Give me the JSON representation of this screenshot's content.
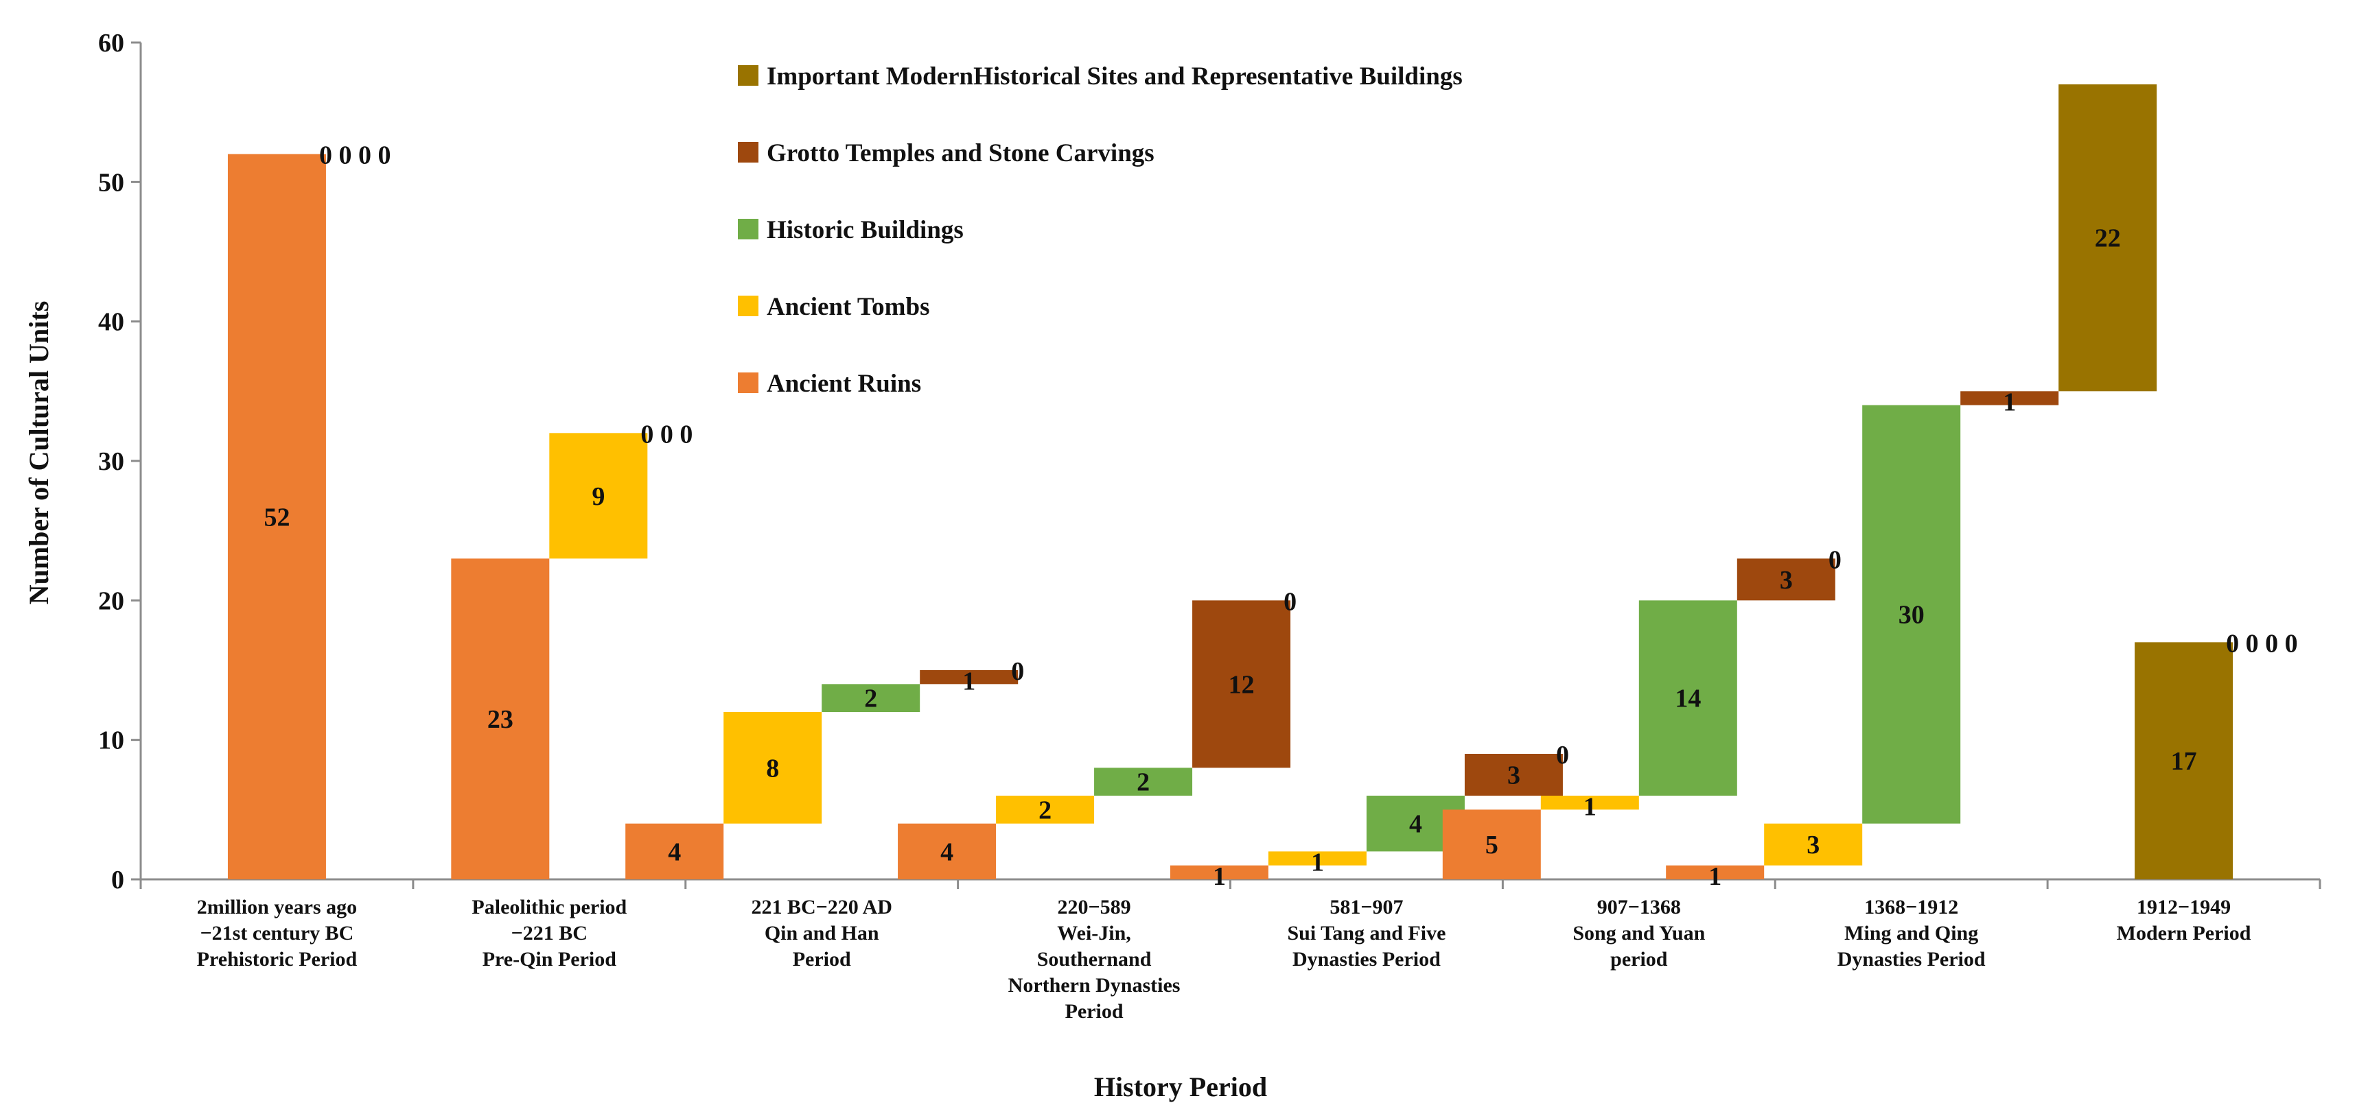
{
  "chart_data": {
    "type": "bar",
    "stacked": "waterfall",
    "title": "",
    "xlabel": "History Period",
    "ylabel": "Number of Cultural  Units",
    "ylim": [
      0,
      60
    ],
    "yticks": [
      "0",
      "10",
      "20",
      "30",
      "40",
      "50",
      "60"
    ],
    "legend_position": "top-center",
    "categories": [
      {
        "lines": [
          "2million years ago",
          "−21st century BC",
          "Prehistoric Period"
        ]
      },
      {
        "lines": [
          "Paleolithic period",
          "−221 BC",
          "Pre-Qin Period"
        ]
      },
      {
        "lines": [
          "221 BC−220 AD",
          "Qin and Han",
          "Period"
        ]
      },
      {
        "lines": [
          "220−589",
          "Wei-Jin,",
          "Southernand",
          "Northern Dynasties",
          "Period"
        ]
      },
      {
        "lines": [
          "581−907",
          "Sui Tang and Five",
          "Dynasties Period"
        ]
      },
      {
        "lines": [
          "907−1368",
          "Song and Yuan",
          "period"
        ]
      },
      {
        "lines": [
          "1368−1912",
          "Ming and Qing",
          "Dynasties Period"
        ]
      },
      {
        "lines": [
          "1912−1949",
          "Modern Period"
        ]
      }
    ],
    "series": [
      {
        "name": "Ancient Ruins",
        "color": "#ED7D31",
        "values": [
          52,
          23,
          4,
          4,
          1,
          5,
          1,
          0
        ]
      },
      {
        "name": "Ancient Tombs",
        "color": "#FFC000",
        "values": [
          0,
          9,
          8,
          2,
          1,
          1,
          3,
          0
        ]
      },
      {
        "name": "Historic Buildings",
        "color": "#70AD47",
        "values": [
          0,
          0,
          2,
          2,
          4,
          14,
          30,
          0
        ]
      },
      {
        "name": "Grotto Temples and Stone Carvings",
        "color": "#9E480E",
        "values": [
          0,
          0,
          1,
          12,
          3,
          3,
          1,
          0
        ]
      },
      {
        "name": "Important ModernHistorical Sites and Representative Buildings",
        "color": "#997300",
        "values": [
          0,
          0,
          0,
          0,
          0,
          0,
          22,
          17
        ]
      }
    ],
    "legend_order": [
      4,
      3,
      2,
      1,
      0
    ],
    "zero_labels": [
      "0 0 0 0",
      "0 0 0",
      "0",
      "0",
      "0",
      "0",
      "",
      "0 0 0 0"
    ]
  }
}
